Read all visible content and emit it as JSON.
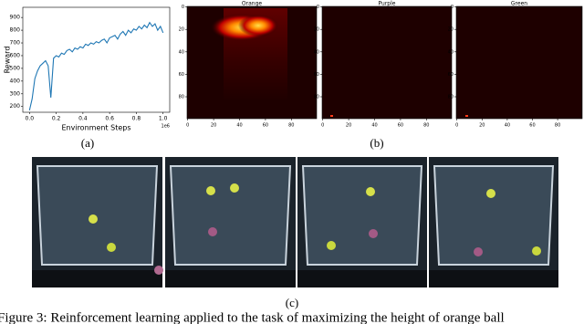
{
  "chart_data": [
    {
      "type": "line",
      "xlabel": "Environment Steps",
      "ylabel": "Reward",
      "x_offset_label": "1e6",
      "x": [
        0,
        0.02,
        0.04,
        0.06,
        0.08,
        0.1,
        0.12,
        0.14,
        0.16,
        0.18,
        0.2,
        0.22,
        0.24,
        0.26,
        0.28,
        0.3,
        0.32,
        0.34,
        0.36,
        0.38,
        0.4,
        0.42,
        0.44,
        0.46,
        0.48,
        0.5,
        0.52,
        0.54,
        0.56,
        0.58,
        0.6,
        0.62,
        0.64,
        0.66,
        0.68,
        0.7,
        0.72,
        0.74,
        0.76,
        0.78,
        0.8,
        0.82,
        0.84,
        0.86,
        0.88,
        0.9,
        0.92,
        0.94,
        0.96,
        0.98,
        1.0
      ],
      "series": [
        {
          "color": "#1f77b4",
          "values": [
            170,
            260,
            420,
            480,
            520,
            540,
            560,
            520,
            270,
            580,
            600,
            590,
            620,
            610,
            640,
            650,
            630,
            660,
            650,
            670,
            660,
            690,
            680,
            700,
            690,
            710,
            700,
            720,
            730,
            700,
            740,
            750,
            760,
            730,
            770,
            790,
            760,
            800,
            780,
            810,
            800,
            830,
            810,
            840,
            820,
            860,
            830,
            850,
            800,
            830,
            780
          ]
        }
      ],
      "xlim": [
        -0.05,
        1.05
      ],
      "ylim": [
        155,
        980
      ],
      "xticks": [
        {
          "value": 0,
          "label": "0.0"
        },
        {
          "value": 0.2,
          "label": "0.2"
        },
        {
          "value": 0.4,
          "label": "0.4"
        },
        {
          "value": 0.6,
          "label": "0.6"
        },
        {
          "value": 0.8,
          "label": "0.8"
        },
        {
          "value": 1,
          "label": "1.0"
        }
      ],
      "yticks": [
        200,
        300,
        400,
        500,
        600,
        700,
        800,
        900
      ]
    },
    {
      "type": "heatmap",
      "title": "Orange",
      "xlim": [
        -0.5,
        99.5
      ],
      "ylim": [
        99.5,
        -0.5
      ],
      "xticks": [
        0,
        20,
        40,
        60,
        80
      ],
      "yticks": [
        0,
        20,
        40,
        60,
        80
      ]
    },
    {
      "type": "heatmap",
      "title": "Purple",
      "xlim": [
        -0.5,
        99.5
      ],
      "ylim": [
        99.5,
        -0.5
      ],
      "xticks": [
        0,
        20,
        40,
        60,
        80
      ],
      "yticks": [
        0,
        20,
        40,
        60,
        80
      ]
    },
    {
      "type": "heatmap",
      "title": "Green",
      "xlim": [
        -0.5,
        99.5
      ],
      "ylim": [
        99.5,
        -0.5
      ],
      "xticks": [
        0,
        20,
        40,
        60,
        80
      ],
      "yticks": [
        0,
        20,
        40,
        60,
        80
      ]
    }
  ],
  "labels": {
    "a": "(a)",
    "b": "(b)",
    "c": "(c)"
  },
  "caption": "Figure 3: Reinforcement learning applied to the task of maximizing the height of orange ball"
}
